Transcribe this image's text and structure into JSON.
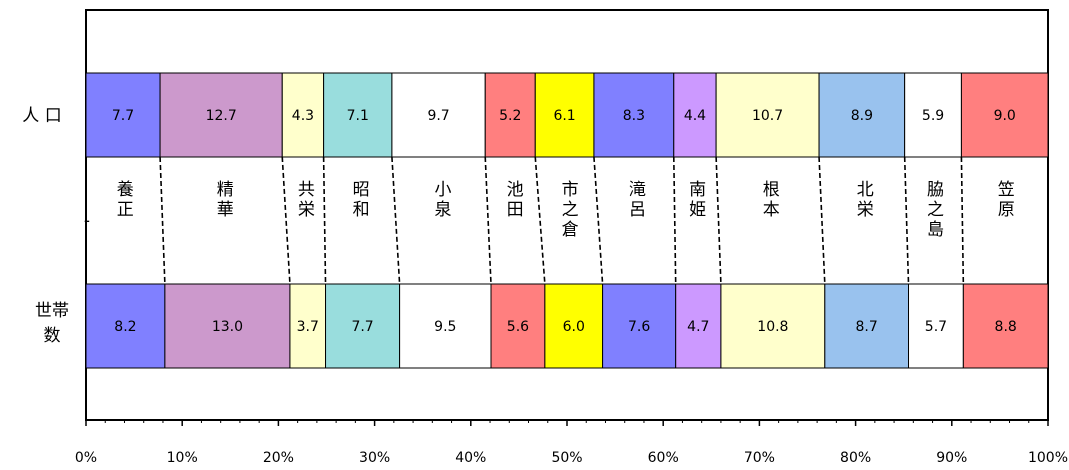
{
  "chart_data": {
    "type": "bar",
    "orientation": "horizontal",
    "stacked": "percent",
    "row_labels": {
      "population": "人 口",
      "households": [
        "世帯",
        "数"
      ]
    },
    "side_marker": "-",
    "categories": [
      "養正",
      "精華",
      "共栄",
      "昭和",
      "小泉",
      "池田",
      "市之倉",
      "滝呂",
      "南姫",
      "根本",
      "北栄",
      "脇之島",
      "笠原"
    ],
    "colors": [
      "#8080FF",
      "#CC99CC",
      "#FFFFCC",
      "#99DDDD",
      "#FFFFFF",
      "#FF7F7F",
      "#FFFF00",
      "#8080FF",
      "#CC99FF",
      "#FFFFCC",
      "#99C2EE",
      "#FFFFFF",
      "#FF7F7F"
    ],
    "series": [
      {
        "name": "人 口",
        "values": [
          7.7,
          12.7,
          4.3,
          7.1,
          9.7,
          5.2,
          6.1,
          8.3,
          4.4,
          10.7,
          8.9,
          5.9,
          9.0
        ],
        "labels": [
          "7.7",
          "12.7",
          "4.3",
          "7.1",
          "9.7",
          "5.2",
          "6.1",
          "8.3",
          "4.4",
          "10.7",
          "8.9",
          "5.9",
          "9.0"
        ]
      },
      {
        "name": "世帯数",
        "values": [
          8.2,
          13.0,
          3.7,
          7.7,
          9.5,
          5.6,
          6.0,
          7.6,
          4.7,
          10.8,
          8.7,
          5.7,
          8.8
        ],
        "labels": [
          "8.2",
          "13.0",
          "3.7",
          "7.7",
          "9.5",
          "5.6",
          "6.0",
          "7.6",
          "4.7",
          "10.8",
          "8.7",
          "5.7",
          "8.8"
        ]
      }
    ],
    "xlim": [
      0,
      100
    ],
    "x_ticks": [
      "0%",
      "10%",
      "20%",
      "30%",
      "40%",
      "50%",
      "60%",
      "70%",
      "80%",
      "90%",
      "100%"
    ],
    "grid": false,
    "connector_lines": "dashed"
  }
}
